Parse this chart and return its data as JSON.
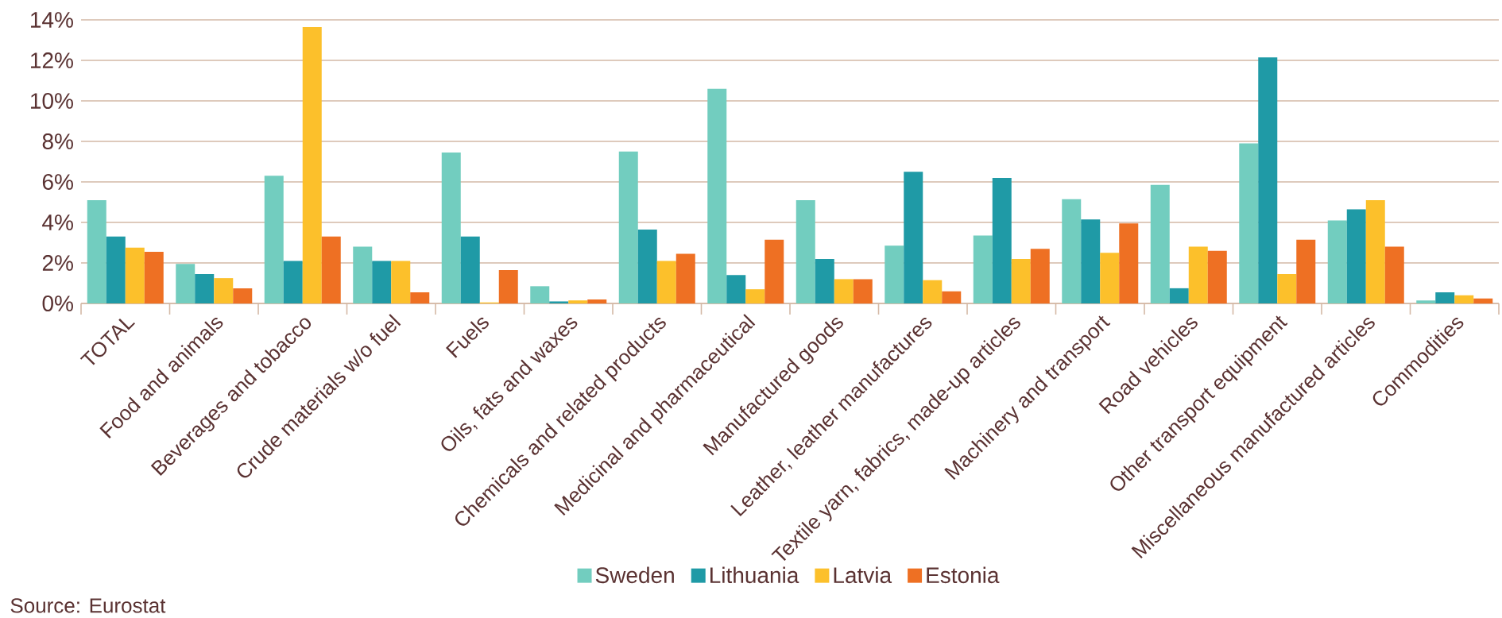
{
  "chart_data": {
    "type": "bar",
    "categories": [
      "TOTAL",
      "Food and animals",
      "Beverages and tobacco",
      "Crude materials w/o fuel",
      "Fuels",
      "Oils, fats and waxes",
      "Chemicals and related products",
      "Medicinal and pharmaceutical",
      "Manufactured goods",
      "Leather, leather manufactures",
      "Textile yarn, fabrics, made-up articles",
      "Machinery and transport",
      "Road vehicles",
      "Other transport equipment",
      "Miscellaneous manufactured articles",
      "Commodities"
    ],
    "series": [
      {
        "name": "Sweden",
        "color": "#72cdbf",
        "values": [
          5.1,
          1.95,
          6.3,
          2.8,
          7.45,
          0.85,
          7.5,
          10.6,
          5.1,
          2.85,
          3.35,
          5.15,
          5.85,
          7.9,
          4.1,
          0.15
        ]
      },
      {
        "name": "Lithuania",
        "color": "#1f9aa6",
        "values": [
          3.3,
          1.45,
          2.1,
          2.1,
          3.3,
          0.1,
          3.65,
          1.4,
          2.2,
          6.5,
          6.2,
          4.15,
          0.75,
          12.15,
          4.65,
          0.55
        ]
      },
      {
        "name": "Latvia",
        "color": "#fcc02b",
        "values": [
          2.75,
          1.25,
          13.65,
          2.1,
          0.05,
          0.15,
          2.1,
          0.7,
          1.2,
          1.15,
          2.2,
          2.5,
          2.8,
          1.45,
          5.1,
          0.4
        ]
      },
      {
        "name": "Estonia",
        "color": "#ee7023",
        "values": [
          2.55,
          0.75,
          3.3,
          0.55,
          1.65,
          0.2,
          2.45,
          3.15,
          1.2,
          0.6,
          2.7,
          3.95,
          2.6,
          3.15,
          2.8,
          0.25
        ]
      }
    ],
    "ylim": [
      0,
      14
    ],
    "yticks": [
      {
        "value": 0,
        "label": "0%"
      },
      {
        "value": 2,
        "label": "2%"
      },
      {
        "value": 4,
        "label": "4%"
      },
      {
        "value": 6,
        "label": "6%"
      },
      {
        "value": 8,
        "label": "8%"
      },
      {
        "value": 10,
        "label": "10%"
      },
      {
        "value": 12,
        "label": "12%"
      },
      {
        "value": 14,
        "label": "14%"
      }
    ],
    "grid": "y",
    "legend": "bottom",
    "annotations": [
      "Source: Eurostat"
    ]
  }
}
